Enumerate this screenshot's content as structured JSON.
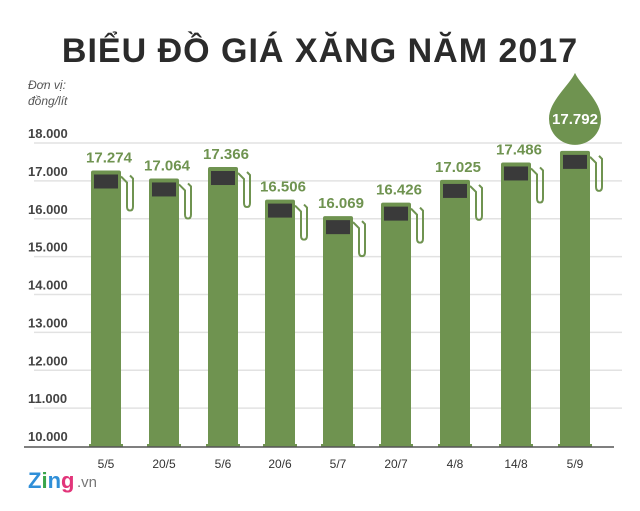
{
  "chart_data": {
    "type": "bar",
    "title": "BIỂU ĐỒ GIÁ XĂNG NĂM 2017",
    "unit_label": [
      "Đơn vị:",
      "đồng/lít"
    ],
    "categories": [
      "5/5",
      "20/5",
      "5/6",
      "20/6",
      "5/7",
      "20/7",
      "4/8",
      "14/8",
      "5/9"
    ],
    "values": [
      17274,
      17064,
      17366,
      16506,
      16069,
      16426,
      17025,
      17486,
      17792
    ],
    "value_labels": [
      "17.274",
      "17.064",
      "17.366",
      "16.506",
      "16.069",
      "16.426",
      "17.025",
      "17.486",
      "17.792"
    ],
    "ylim": [
      10000,
      18000
    ],
    "yticks": [
      10000,
      11000,
      12000,
      13000,
      14000,
      15000,
      16000,
      17000,
      18000
    ],
    "ytick_labels": [
      "10.000",
      "11.000",
      "12.000",
      "13.000",
      "14.000",
      "15.000",
      "16.000",
      "17.000",
      "18.000"
    ],
    "grid": true,
    "highlight_index": 8,
    "colors": {
      "bar": "#6f9350",
      "screen": "#3a3a3a",
      "grid": "#e2e2e2",
      "axis": "#555555"
    }
  },
  "brand": {
    "name": "Zing",
    "suffix": ".vn"
  }
}
